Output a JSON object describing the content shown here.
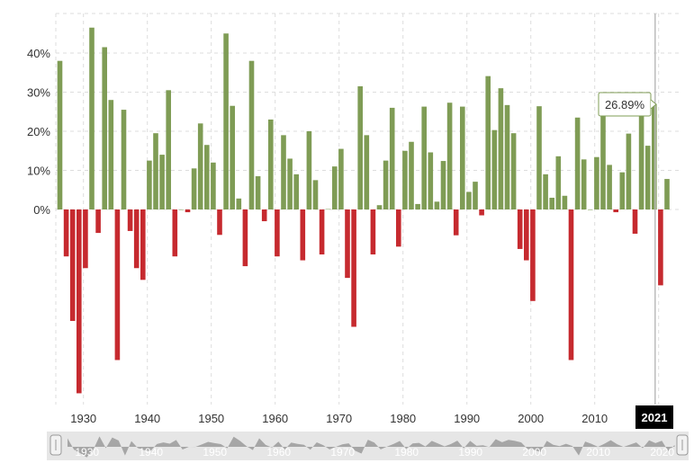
{
  "chart_data": {
    "type": "bar",
    "title": "",
    "xlabel": "",
    "ylabel": "",
    "x_ticks": [
      "1930",
      "1940",
      "1950",
      "1960",
      "1970",
      "1980",
      "1990",
      "2000",
      "2010",
      "2020"
    ],
    "y_ticks": [
      "0%",
      "10%",
      "20%",
      "30%",
      "40%"
    ],
    "ylim": [
      -48,
      50
    ],
    "grid": true,
    "positive_color": "#7f9c55",
    "negative_color": "#c62a2f",
    "years": [
      1928,
      1929,
      1930,
      1931,
      1932,
      1933,
      1934,
      1935,
      1936,
      1937,
      1938,
      1939,
      1940,
      1941,
      1942,
      1943,
      1944,
      1945,
      1946,
      1947,
      1948,
      1949,
      1950,
      1951,
      1952,
      1953,
      1954,
      1955,
      1956,
      1957,
      1958,
      1959,
      1960,
      1961,
      1962,
      1963,
      1964,
      1965,
      1966,
      1967,
      1968,
      1969,
      1970,
      1971,
      1972,
      1973,
      1974,
      1975,
      1976,
      1977,
      1978,
      1979,
      1980,
      1981,
      1982,
      1983,
      1984,
      1985,
      1986,
      1987,
      1988,
      1989,
      1990,
      1991,
      1992,
      1993,
      1994,
      1995,
      1996,
      1997,
      1998,
      1999,
      2000,
      2001,
      2002,
      2003,
      2004,
      2005,
      2006,
      2007,
      2008,
      2009,
      2010,
      2011,
      2012,
      2013,
      2014,
      2015,
      2016,
      2017,
      2018,
      2019,
      2020,
      2021,
      2022,
      2023
    ],
    "values": [
      38.0,
      -12.0,
      -28.5,
      -47.0,
      -15.0,
      46.5,
      -6.0,
      41.5,
      28.0,
      -38.5,
      25.5,
      -5.5,
      -15.0,
      -18.0,
      12.5,
      19.5,
      14.0,
      30.5,
      -12.0,
      0.0,
      -0.7,
      10.5,
      22.0,
      16.5,
      12.0,
      -6.5,
      45.0,
      26.5,
      2.8,
      -14.5,
      38.0,
      8.5,
      -3.0,
      23.0,
      -12.0,
      19.0,
      13.0,
      9.0,
      -13.0,
      20.0,
      7.5,
      -11.5,
      0.1,
      11.0,
      15.5,
      -17.5,
      -30.0,
      31.5,
      19.0,
      -11.5,
      1.1,
      12.5,
      26.0,
      -9.5,
      15.0,
      17.3,
      1.4,
      26.3,
      14.6,
      2.0,
      12.4,
      27.3,
      -6.6,
      26.3,
      4.5,
      7.1,
      -1.5,
      34.1,
      20.3,
      31.0,
      26.7,
      19.5,
      -10.1,
      -13.0,
      -23.4,
      26.4,
      9.0,
      3.0,
      13.6,
      3.5,
      -38.5,
      23.5,
      12.8,
      0.0,
      13.4,
      29.6,
      11.4,
      -0.7,
      9.5,
      19.4,
      -6.2,
      28.9,
      16.3,
      26.89,
      -19.4,
      7.8
    ],
    "tooltip": {
      "year_badge": "2021",
      "value_label": "26.89%"
    },
    "navigator_labels": [
      "1930",
      "1940",
      "1950",
      "1960",
      "1970",
      "1980",
      "1990",
      "2000",
      "2010",
      "2020"
    ]
  }
}
